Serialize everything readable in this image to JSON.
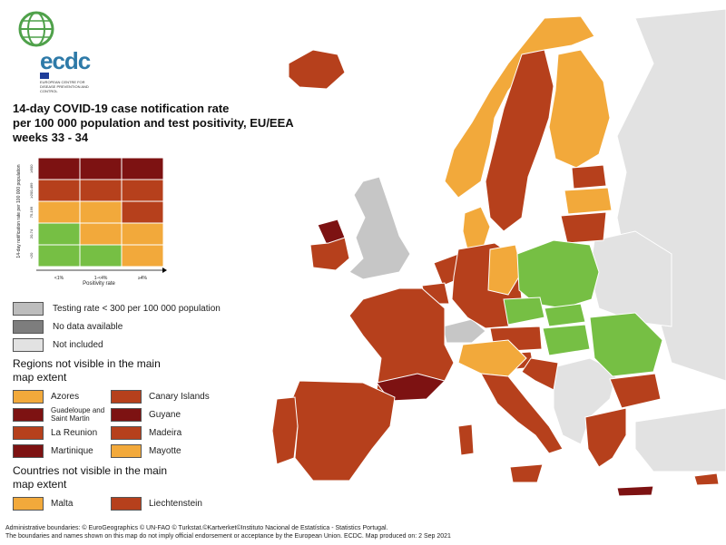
{
  "colors": {
    "dark_red": "#7d1212",
    "red": "#b6401c",
    "orange": "#f2a93b",
    "green": "#76bf44",
    "grey_testing": "#bdbdbd",
    "grey_nodata": "#7d7d7d",
    "grey_notincluded": "#e2e2e2",
    "sea": "#ffffff"
  },
  "logo": {
    "name": "ecdc",
    "subtitle": "EUROPEAN CENTRE FOR DISEASE PREVENTION AND CONTROL"
  },
  "title": "14-day COVID-19 case notification rate\nper 100 000 population and test positivity, EU/EEA\nweeks 33 - 34",
  "matrix": {
    "y_axis_label": "14-day notification rate per 100 000 population",
    "x_axis_label": "Positivity rate",
    "y_ticks": [
      "≥500",
      "≥200-499",
      "75-199",
      "20-74",
      "<20"
    ],
    "x_ticks": [
      "<1%",
      "1-<4%",
      "≥4%"
    ],
    "cells": [
      [
        "dark_red",
        "dark_red",
        "dark_red"
      ],
      [
        "red",
        "red",
        "red"
      ],
      [
        "orange",
        "orange",
        "red"
      ],
      [
        "green",
        "orange",
        "orange"
      ],
      [
        "green",
        "green",
        "orange"
      ]
    ]
  },
  "legend": {
    "testing_rate": "Testing rate < 300 per 100 000 population",
    "no_data": "No data available",
    "not_included": "Not included",
    "regions_header": "Regions not visible in the main map extent",
    "regions": [
      {
        "label": "Azores",
        "color": "orange"
      },
      {
        "label": "Canary Islands",
        "color": "red"
      },
      {
        "label": "Guadeloupe and Saint Martin",
        "color": "dark_red"
      },
      {
        "label": "Guyane",
        "color": "dark_red"
      },
      {
        "label": "La Reunion",
        "color": "red"
      },
      {
        "label": "Madeira",
        "color": "red"
      },
      {
        "label": "Martinique",
        "color": "dark_red"
      },
      {
        "label": "Mayotte",
        "color": "orange"
      }
    ],
    "countries_header": "Countries not visible in the main map extent",
    "countries": [
      {
        "label": "Malta",
        "color": "orange"
      },
      {
        "label": "Liechtenstein",
        "color": "red"
      }
    ]
  },
  "footer": {
    "line1": "Administrative boundaries: © EuroGeographics © UN-FAO © Turkstat.©Kartverket©Instituto Nacional de Estatística - Statistics Portugal.",
    "line2": "The boundaries and names shown on this map do not imply official endorsement or acceptance by the European Union. ECDC. Map produced on: 2 Sep 2021"
  }
}
